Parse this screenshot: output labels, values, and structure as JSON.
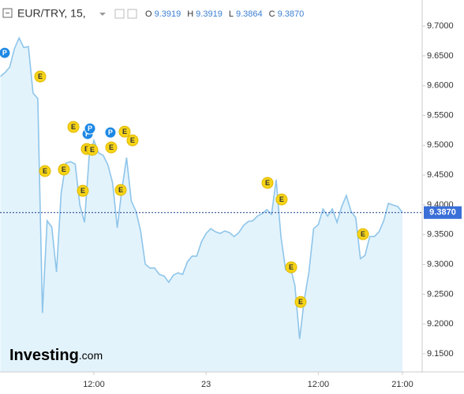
{
  "chart_data": {
    "type": "area",
    "symbol": "EUR/TRY, 15,",
    "ohlc": [
      {
        "key": "O",
        "value": "9.3919"
      },
      {
        "key": "H",
        "value": "9.3919"
      },
      {
        "key": "L",
        "value": "9.3864"
      },
      {
        "key": "C",
        "value": "9.3870"
      }
    ],
    "logo": {
      "main": "Investing",
      "suffix": ".com"
    },
    "line_color": "#8ec5ea",
    "fill_color": "#e3f3fc",
    "x": [
      2,
      2.5,
      3,
      3.5,
      4,
      4.5,
      5,
      5.5,
      6,
      6.5,
      7,
      7.5,
      8,
      8.5,
      9,
      9.5,
      10,
      10.5,
      11,
      11.5,
      12,
      12.5,
      13,
      13.5,
      14,
      14.5,
      15,
      15.5,
      16,
      16.5,
      17,
      17.5,
      18,
      18.5,
      19,
      19.5,
      20,
      20.5,
      21,
      21.5,
      22,
      22.5,
      23,
      23.5,
      24,
      24.5,
      25,
      25.5,
      26,
      26.5,
      27,
      27.5,
      28,
      28.5,
      29,
      29.5,
      30,
      30.5,
      31,
      31.5,
      32,
      32.5,
      33,
      33.5,
      34,
      34.5,
      35,
      35.5,
      36,
      36.5,
      37,
      37.5,
      38,
      38.5,
      39,
      39.5,
      40,
      40.5,
      41,
      41.5,
      42,
      42.5,
      43,
      43.5,
      44,
      44.5,
      45
    ],
    "values": [
      9.6153,
      9.622,
      9.6312,
      9.6616,
      9.68,
      9.664,
      9.6656,
      9.5876,
      9.5783,
      9.2185,
      9.3733,
      9.3627,
      9.2873,
      9.4196,
      9.4698,
      9.4725,
      9.4685,
      9.3997,
      9.3706,
      9.4817,
      9.5082,
      9.487,
      9.4831,
      9.4672,
      9.4368,
      9.3614,
      9.4262,
      9.4791,
      9.4063,
      9.3892,
      9.3561,
      9.3005,
      9.2939,
      9.2939,
      9.2833,
      9.2807,
      9.2701,
      9.282,
      9.286,
      9.2833,
      9.3045,
      9.3138,
      9.3138,
      9.3376,
      9.3521,
      9.36,
      9.3548,
      9.3521,
      9.3561,
      9.3534,
      9.3468,
      9.3534,
      9.3653,
      9.372,
      9.3733,
      9.3812,
      9.3852,
      9.3918,
      9.3839,
      9.4421,
      9.3468,
      9.2913,
      9.2966,
      9.2648,
      9.1749,
      9.241,
      9.2873,
      9.36,
      9.3667,
      9.3931,
      9.3812,
      9.3931,
      9.3706,
      9.3971,
      9.4156,
      9.3892,
      9.3786,
      9.3098,
      9.3151,
      9.3468,
      9.3468,
      9.3548,
      9.3733,
      9.4024,
      9.3997,
      9.3971,
      9.387
    ],
    "xlim": [
      1.96,
      47.11
    ],
    "xticks": [
      {
        "value": 12,
        "label": "12:00"
      },
      {
        "value": 24,
        "label": "23"
      },
      {
        "value": 36,
        "label": "12:00"
      },
      {
        "value": 45,
        "label": "21:00"
      }
    ],
    "ylim": [
      9.1196,
      9.7437
    ],
    "yticks": [
      {
        "value": 9.15,
        "label": "9.1500"
      },
      {
        "value": 9.2,
        "label": "9.2000"
      },
      {
        "value": 9.25,
        "label": "9.2500"
      },
      {
        "value": 9.3,
        "label": "9.3000"
      },
      {
        "value": 9.35,
        "label": "9.3500"
      },
      {
        "value": 9.4,
        "label": "9.4000"
      },
      {
        "value": 9.45,
        "label": "9.4500"
      },
      {
        "value": 9.5,
        "label": "9.5000"
      },
      {
        "value": 9.55,
        "label": "9.5500"
      },
      {
        "value": 9.6,
        "label": "9.6000"
      },
      {
        "value": 9.65,
        "label": "9.6500"
      },
      {
        "value": 9.7,
        "label": "9.7000"
      }
    ],
    "last": {
      "value": 9.387,
      "label": "9.3870"
    },
    "markers": [
      {
        "label": "P",
        "x": 2.46,
        "y": 9.655
      },
      {
        "label": "E",
        "x": 6.26,
        "y": 9.6153
      },
      {
        "label": "E",
        "x": 6.77,
        "y": 9.4566
      },
      {
        "label": "E",
        "x": 8.79,
        "y": 9.4593
      },
      {
        "label": "E",
        "x": 9.81,
        "y": 9.5307
      },
      {
        "label": "E",
        "x": 10.82,
        "y": 9.4235
      },
      {
        "label": "E",
        "x": 11.24,
        "y": 9.4937
      },
      {
        "label": "E",
        "x": 11.83,
        "y": 9.4923
      },
      {
        "label": "P",
        "x": 11.33,
        "y": 9.519
      },
      {
        "label": "P",
        "x": 11.58,
        "y": 9.528
      },
      {
        "label": "P",
        "x": 13.77,
        "y": 9.5214
      },
      {
        "label": "E",
        "x": 13.86,
        "y": 9.4963
      },
      {
        "label": "E",
        "x": 14.87,
        "y": 9.4249
      },
      {
        "label": "E",
        "x": 15.29,
        "y": 9.5228
      },
      {
        "label": "E",
        "x": 16.13,
        "y": 9.5082
      },
      {
        "label": "E",
        "x": 30.57,
        "y": 9.4368
      },
      {
        "label": "E",
        "x": 32.08,
        "y": 9.409
      },
      {
        "label": "E",
        "x": 33.1,
        "y": 9.2952
      },
      {
        "label": "E",
        "x": 34.11,
        "y": 9.237
      },
      {
        "label": "E",
        "x": 40.78,
        "y": 9.3508
      }
    ]
  }
}
